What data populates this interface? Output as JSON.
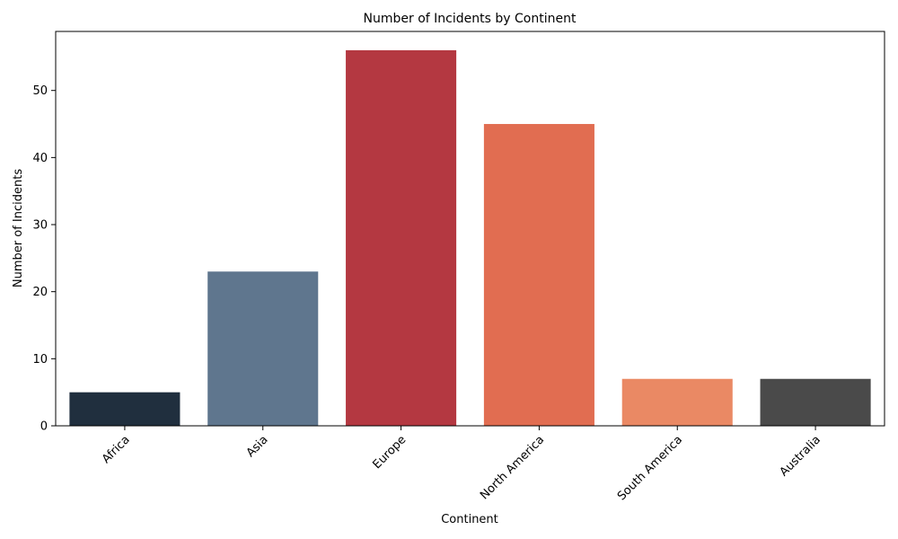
{
  "chart_data": {
    "type": "bar",
    "title": "Number of Incidents by Continent",
    "xlabel": "Continent",
    "ylabel": "Number of Incidents",
    "categories": [
      "Africa",
      "Asia",
      "Europe",
      "North America",
      "South America",
      "Australia"
    ],
    "values": [
      5,
      23,
      56,
      45,
      7,
      7
    ],
    "colors": [
      "#202f3e",
      "#5f768e",
      "#b43841",
      "#e16d51",
      "#ea8964",
      "#4a4a4a"
    ],
    "ylim": [
      0,
      58.8
    ],
    "yticks": [
      0,
      10,
      20,
      30,
      40,
      50
    ],
    "grid": false,
    "legend": "none"
  }
}
